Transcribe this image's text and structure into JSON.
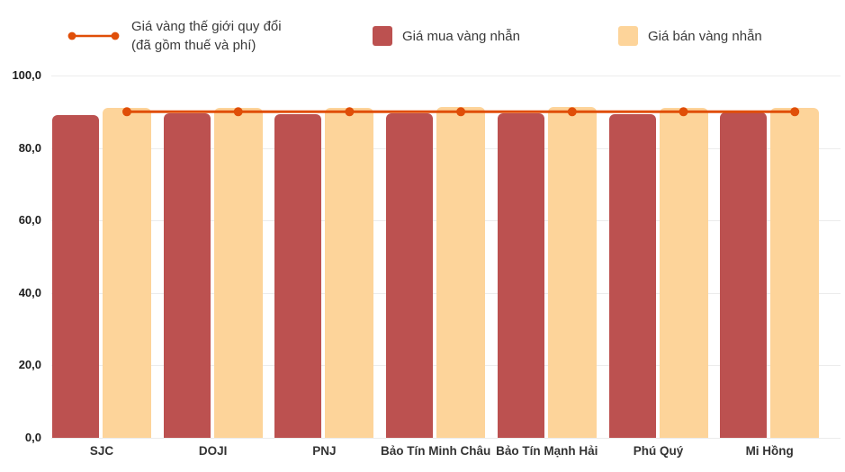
{
  "accent_colors": {
    "line": "#e04e08",
    "buy_bar": "#bc5150",
    "sell_bar": "#fdd49a",
    "gridline": "#ececec",
    "text": "#3a3a3a"
  },
  "legend": {
    "line_series": {
      "label_line1": "Giá vàng thế giới quy đổi",
      "label_line2": "(đã gồm thuế và phí)",
      "color": "#e04e08"
    },
    "buy_series": {
      "label": "Giá mua vàng nhẫn",
      "color": "#bc5150"
    },
    "sell_series": {
      "label": "Giá bán vàng nhẫn",
      "color": "#fdd49a"
    }
  },
  "chart_data": {
    "type": "bar",
    "categories": [
      "SJC",
      "DOJI",
      "PNJ",
      "Bảo Tín Minh Châu",
      "Bảo Tín Mạnh Hải",
      "Phú Quý",
      "Mi Hồng"
    ],
    "series": [
      {
        "name": "Giá vàng thế giới quy đổi (đã gồm thuế và phí)",
        "type": "line",
        "color": "#e04e08",
        "values": [
          90.0,
          90.0,
          90.0,
          90.0,
          90.0,
          90.0,
          90.0
        ]
      },
      {
        "name": "Giá mua vàng nhẫn",
        "type": "bar",
        "color": "#bc5150",
        "values": [
          89.1,
          89.6,
          89.4,
          89.5,
          89.5,
          89.4,
          89.9
        ]
      },
      {
        "name": "Giá bán vàng nhẫn",
        "type": "bar",
        "color": "#fdd49a",
        "values": [
          91.0,
          91.0,
          91.0,
          91.3,
          91.2,
          91.1,
          91.0
        ]
      }
    ],
    "ylim": [
      0,
      100
    ],
    "ytick_step": 20,
    "yticks": [
      "0,0",
      "20,0",
      "40,0",
      "60,0",
      "80,0",
      "100,0"
    ],
    "grid": true,
    "legend_position": "top"
  }
}
